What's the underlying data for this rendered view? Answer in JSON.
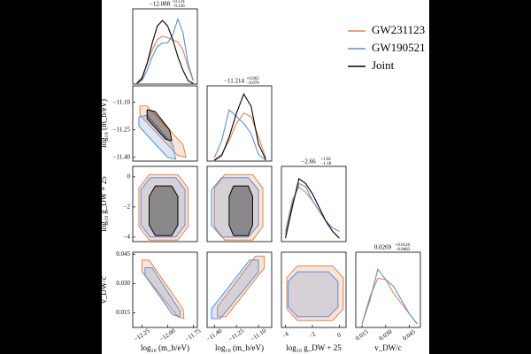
{
  "chart_data": [
    {
      "type": "line",
      "title": "−12.088",
      "title_plus": "+0.134",
      "title_minus": "−0.126",
      "x": [
        -12.3,
        -12.25,
        -12.2,
        -12.15,
        -12.1,
        -12.05,
        -12.0,
        -11.95,
        -11.9,
        -11.85,
        -11.8,
        -11.75
      ],
      "series": [
        {
          "name": "GW231123",
          "color": "#e4834f",
          "values": [
            0.02,
            0.1,
            0.3,
            0.5,
            0.65,
            0.7,
            0.68,
            0.64,
            0.62,
            0.5,
            0.25,
            0.05
          ]
        },
        {
          "name": "GW190521",
          "color": "#5b8ed8",
          "values": [
            0.01,
            0.05,
            0.2,
            0.4,
            0.55,
            0.6,
            0.6,
            0.72,
            0.95,
            0.75,
            0.3,
            0.05
          ]
        },
        {
          "name": "Joint",
          "color": "#000000",
          "values": [
            0.01,
            0.08,
            0.3,
            0.6,
            0.85,
            0.93,
            0.85,
            0.65,
            0.4,
            0.2,
            0.05,
            0.01
          ]
        }
      ],
      "xlim": [
        -12.34,
        -11.71
      ],
      "ylim": [
        0,
        1.1
      ]
    },
    {
      "type": "contour",
      "xlim": [
        -12.34,
        -11.71
      ],
      "ylim": [
        -11.42,
        -11.01
      ],
      "yticks": [
        {
          "value": -11.1,
          "label": "−11.10"
        },
        {
          "value": -11.25,
          "label": "−11.25"
        },
        {
          "value": -11.4,
          "label": "−11.40"
        }
      ],
      "ylabel": "log₁₀ (m_b/eV)",
      "series": [
        {
          "name": "GW231123",
          "color": "#e4834f",
          "x": [
            -12.27,
            -12.2,
            -11.85,
            -11.82,
            -11.9,
            -12.27
          ],
          "y": [
            -11.12,
            -11.12,
            -11.33,
            -11.4,
            -11.39,
            -11.17
          ]
        },
        {
          "name": "GW190521",
          "color": "#5b8ed8",
          "x": [
            -12.28,
            -12.2,
            -11.95,
            -11.92,
            -12.0,
            -12.28
          ],
          "y": [
            -11.18,
            -11.17,
            -11.33,
            -11.41,
            -11.4,
            -11.23
          ]
        },
        {
          "name": "Joint",
          "color": "#000000",
          "x": [
            -12.2,
            -12.12,
            -11.98,
            -11.96,
            -12.02,
            -12.2
          ],
          "y": [
            -11.14,
            -11.15,
            -11.25,
            -11.31,
            -11.3,
            -11.19
          ]
        }
      ]
    },
    {
      "type": "line",
      "title": "−11.214",
      "title_plus": "+0.063",
      "title_minus": "−0.070",
      "x": [
        -11.4,
        -11.35,
        -11.3,
        -11.25,
        -11.2,
        -11.15,
        -11.1,
        -11.05
      ],
      "series": [
        {
          "name": "GW231123",
          "color": "#e4834f",
          "values": [
            0.02,
            0.1,
            0.3,
            0.55,
            0.7,
            0.65,
            0.35,
            0.05
          ]
        },
        {
          "name": "GW190521",
          "color": "#5b8ed8",
          "values": [
            0.05,
            0.3,
            0.75,
            0.65,
            0.55,
            0.4,
            0.1,
            0.01
          ]
        },
        {
          "name": "Joint",
          "color": "#000000",
          "values": [
            0.01,
            0.08,
            0.35,
            0.7,
            0.98,
            0.8,
            0.25,
            0.02
          ]
        }
      ],
      "xlim": [
        -11.45,
        -11.01
      ],
      "ylim": [
        0,
        1.1
      ]
    },
    {
      "type": "contour",
      "xlim": [
        -12.34,
        -11.71
      ],
      "ylim": [
        -4.3,
        0.7
      ],
      "yticks": [
        0,
        {
          "value": -2,
          "label": "−2"
        },
        {
          "value": -4,
          "label": "−4"
        }
      ],
      "ylabel": "log₁₀ g_DW + 25",
      "series": [
        {
          "name": "GW231123",
          "color": "#e4834f",
          "x": [
            -12.18,
            -11.9,
            -11.8,
            -11.8,
            -11.9,
            -12.18,
            -12.28,
            -12.28
          ],
          "y": [
            0.15,
            0.15,
            -0.75,
            -3.3,
            -4.2,
            -4.2,
            -3.3,
            -0.75
          ]
        },
        {
          "name": "GW190521",
          "color": "#5b8ed8",
          "x": [
            -12.17,
            -11.92,
            -11.83,
            -11.83,
            -11.92,
            -12.17,
            -12.26,
            -12.26
          ],
          "y": [
            -0.05,
            -0.05,
            -0.85,
            -3.2,
            -4.0,
            -4.0,
            -3.2,
            -0.85
          ]
        },
        {
          "name": "Joint",
          "color": "#000000",
          "x": [
            -12.12,
            -11.96,
            -11.9,
            -11.9,
            -11.96,
            -12.12,
            -12.18,
            -12.18
          ],
          "y": [
            -0.6,
            -0.6,
            -1.3,
            -3.2,
            -3.9,
            -3.9,
            -3.2,
            -1.3
          ]
        }
      ]
    },
    {
      "type": "contour",
      "xlim": [
        -11.45,
        -11.01
      ],
      "ylim": [
        -4.3,
        0.7
      ],
      "series": [
        {
          "name": "GW231123",
          "color": "#e4834f",
          "x": [
            -11.33,
            -11.14,
            -11.07,
            -11.07,
            -11.14,
            -11.33,
            -11.4,
            -11.4
          ],
          "y": [
            0.15,
            0.15,
            -0.75,
            -3.3,
            -4.2,
            -4.2,
            -3.3,
            -0.75
          ]
        },
        {
          "name": "GW190521",
          "color": "#5b8ed8",
          "x": [
            -11.35,
            -11.17,
            -11.1,
            -11.1,
            -11.17,
            -11.35,
            -11.42,
            -11.42
          ],
          "y": [
            -0.05,
            -0.05,
            -0.85,
            -3.2,
            -4.0,
            -4.0,
            -3.2,
            -0.85
          ]
        },
        {
          "name": "Joint",
          "color": "#000000",
          "x": [
            -11.27,
            -11.17,
            -11.14,
            -11.14,
            -11.17,
            -11.27,
            -11.3,
            -11.3
          ],
          "y": [
            -0.6,
            -0.6,
            -1.3,
            -3.2,
            -3.9,
            -3.9,
            -3.2,
            -1.3
          ]
        }
      ]
    },
    {
      "type": "line",
      "title": "−2.66",
      "title_plus": "+1.81",
      "title_minus": "−1.18",
      "x": [
        -4,
        -3.5,
        -3,
        -2.5,
        -2,
        -1.5,
        -1,
        -0.5,
        0
      ],
      "series": [
        {
          "name": "GW231123",
          "color": "#e4834f",
          "values": [
            0.15,
            0.6,
            0.8,
            0.72,
            0.6,
            0.45,
            0.3,
            0.15,
            0.05
          ]
        },
        {
          "name": "GW190521",
          "color": "#5b8ed8",
          "values": [
            0.1,
            0.55,
            0.85,
            0.8,
            0.6,
            0.45,
            0.3,
            0.2,
            0.15
          ]
        },
        {
          "name": "Joint",
          "color": "#000000",
          "values": [
            0.05,
            0.5,
            0.92,
            0.85,
            0.7,
            0.5,
            0.3,
            0.15,
            0.05
          ]
        }
      ],
      "xlim": [
        -4.3,
        0.5
      ],
      "ylim": [
        0,
        1.1
      ]
    },
    {
      "type": "contour",
      "xlim": [
        -12.34,
        -11.71
      ],
      "ylim": [
        0.0075,
        0.046
      ],
      "xticks": [
        {
          "value": -12.25,
          "label": "−12.25"
        },
        {
          "value": -12.0,
          "label": "−12.00"
        },
        {
          "value": -11.75,
          "label": "−11.75"
        }
      ],
      "yticks": [
        0.045,
        {
          "value": 0.03,
          "label": "0.030"
        },
        0.015
      ],
      "xlabel": "log₁₀ (m_b/eV)",
      "ylabel": "v_DW/c",
      "series": [
        {
          "name": "GW231123",
          "color": "#e4834f",
          "x": [
            -12.25,
            -12.18,
            -11.85,
            -11.84,
            -11.9,
            -12.25
          ],
          "y": [
            0.042,
            0.042,
            0.017,
            0.012,
            0.013,
            0.036
          ]
        },
        {
          "name": "GW190521",
          "color": "#5b8ed8",
          "x": [
            -12.22,
            -12.15,
            -11.88,
            -11.88,
            -11.95,
            -12.22
          ],
          "y": [
            0.038,
            0.038,
            0.016,
            0.013,
            0.014,
            0.034
          ]
        }
      ]
    },
    {
      "type": "contour",
      "xlim": [
        -11.45,
        -11.01
      ],
      "ylim": [
        0.0075,
        0.046
      ],
      "xticks": [
        {
          "value": -11.4,
          "label": "−11.40"
        },
        {
          "value": -11.25,
          "label": "−11.25"
        },
        {
          "value": -11.1,
          "label": "−11.10"
        }
      ],
      "xlabel": "log₁₀ (m_b/eV)",
      "series": [
        {
          "name": "GW231123",
          "color": "#e4834f",
          "x": [
            -11.38,
            -11.32,
            -11.06,
            -11.06,
            -11.12,
            -11.38
          ],
          "y": [
            0.013,
            0.013,
            0.038,
            0.044,
            0.044,
            0.018
          ]
        },
        {
          "name": "GW190521",
          "color": "#5b8ed8",
          "x": [
            -11.42,
            -11.36,
            -11.1,
            -11.1,
            -11.16,
            -11.42
          ],
          "y": [
            0.012,
            0.012,
            0.036,
            0.042,
            0.042,
            0.017
          ]
        }
      ]
    },
    {
      "type": "contour",
      "xlim": [
        -4.3,
        0.5
      ],
      "ylim": [
        0.0075,
        0.046
      ],
      "xticks": [
        {
          "value": -4,
          "label": "−4"
        },
        {
          "value": -2,
          "label": "−2"
        },
        0
      ],
      "xlabel": "log₁₀ g_DW + 25",
      "series": [
        {
          "name": "GW231123",
          "color": "#e4834f",
          "x": [
            -3.1,
            -0.5,
            0.3,
            0.3,
            -0.5,
            -3.1,
            -3.9,
            -3.9
          ],
          "y": [
            0.039,
            0.039,
            0.033,
            0.017,
            0.011,
            0.011,
            0.017,
            0.033
          ]
        },
        {
          "name": "GW190521",
          "color": "#5b8ed8",
          "x": [
            -3.1,
            -0.8,
            -0.1,
            -0.1,
            -0.8,
            -3.1,
            -3.8,
            -3.8
          ],
          "y": [
            0.036,
            0.036,
            0.031,
            0.018,
            0.013,
            0.013,
            0.018,
            0.031
          ]
        }
      ]
    },
    {
      "type": "line",
      "title": "0.0269",
      "title_plus": "+0.0120",
      "title_minus": "−0.0083",
      "x": [
        0.015,
        0.02,
        0.025,
        0.03,
        0.035,
        0.04,
        0.045,
        0.05
      ],
      "series": [
        {
          "name": "GW231123",
          "color": "#e4834f",
          "values": [
            0.05,
            0.45,
            0.72,
            0.7,
            0.5,
            0.35,
            0.2,
            0.05
          ]
        },
        {
          "name": "GW190521",
          "color": "#5b8ed8",
          "values": [
            0.05,
            0.4,
            0.85,
            0.7,
            0.6,
            0.4,
            0.2,
            0.05
          ]
        }
      ],
      "xlim": [
        0.011,
        0.052
      ],
      "ylim": [
        0,
        1.1
      ],
      "xticks": [
        0.015,
        {
          "value": 0.03,
          "label": "0.030"
        },
        0.045
      ],
      "xlabel": "v_DW/c"
    }
  ]
}
